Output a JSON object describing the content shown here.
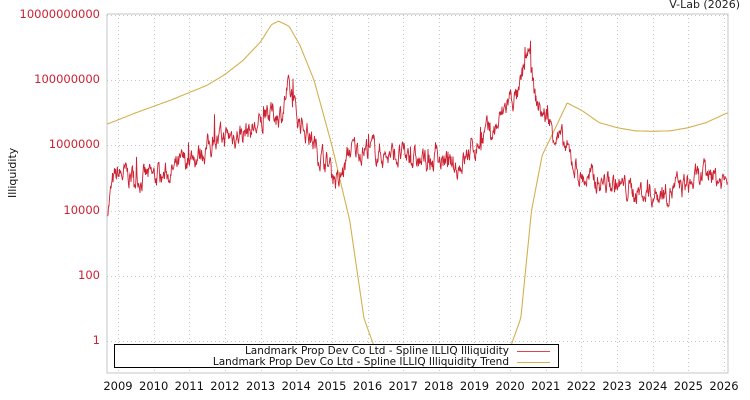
{
  "header": {
    "credit": "V-Lab (2026)"
  },
  "colors": {
    "series": "#cc2233",
    "trend": "#d4b050",
    "grid": "#c8c8c8",
    "axis": "#c0c0c0",
    "ytick": "#cc2233"
  },
  "legend": {
    "items": [
      {
        "label": "Landmark Prop Dev Co Ltd - Spline ILLIQ Illiquidity",
        "color": "#dd4455"
      },
      {
        "label": "Landmark Prop Dev Co Ltd - Spline ILLIQ Illiquidity Trend",
        "color": "#d4b050"
      }
    ]
  },
  "chart_data": {
    "type": "line",
    "title": "",
    "xlabel": "",
    "ylabel": "Illiquidity",
    "yscale": "log",
    "ylim": [
      0.3,
      10000000000
    ],
    "xlim": [
      2008.7,
      2026.1
    ],
    "grid": true,
    "legend_position": "bottom-left inside",
    "yticks": [
      "10000000000",
      "100000000",
      "1000000",
      "10000",
      "100",
      "1"
    ],
    "xticks": [
      "2009",
      "2010",
      "2011",
      "2012",
      "2013",
      "2014",
      "2015",
      "2016",
      "2017",
      "2018",
      "2019",
      "2020",
      "2021",
      "2022",
      "2023",
      "2024",
      "2025",
      "2026"
    ],
    "series": [
      {
        "name": "Landmark Prop Dev Co Ltd - Spline ILLIQ Illiquidity",
        "x": [
          2008.7,
          2008.85,
          2009.0,
          2009.5,
          2010.0,
          2010.5,
          2011.0,
          2011.5,
          2012.0,
          2012.5,
          2013.0,
          2013.3,
          2013.6,
          2013.75,
          2014.0,
          2014.3,
          2014.6,
          2014.9,
          2015.2,
          2015.5,
          2016.0,
          2016.5,
          2017.0,
          2017.5,
          2018.0,
          2018.5,
          2019.0,
          2019.3,
          2019.6,
          2020.0,
          2020.25,
          2020.5,
          2020.7,
          2020.9,
          2021.1,
          2021.4,
          2021.7,
          2022.0,
          2022.5,
          2023.0,
          2023.5,
          2024.0,
          2024.5,
          2025.0,
          2025.5,
          2026.0,
          2026.1
        ],
        "y": [
          12000,
          60000,
          120000,
          110000,
          100000,
          150000,
          350000,
          900000,
          1800000,
          2500000,
          4000000,
          9000000,
          10000000,
          50000000,
          8000000,
          3000000,
          700000,
          250000,
          60000,
          700000,
          800000,
          500000,
          450000,
          300000,
          350000,
          200000,
          900000,
          2000000,
          3000000,
          30000000,
          30000000,
          1000000000,
          25000000,
          10000000,
          5000000,
          1500000,
          400000,
          100000,
          80000,
          60000,
          40000,
          30000,
          45000,
          60000,
          120000,
          80000,
          150000
        ]
      },
      {
        "name": "Landmark Prop Dev Co Ltd - Spline ILLIQ Illiquidity Trend",
        "x": [
          2008.7,
          2009.5,
          2010.5,
          2011.5,
          2012.0,
          2012.5,
          2013.0,
          2013.3,
          2013.5,
          2013.8,
          2014.1,
          2014.5,
          2015.0,
          2015.5,
          2015.9,
          2016.3,
          2019.9,
          2020.3,
          2020.6,
          2020.9,
          2021.3,
          2021.6,
          2022.0,
          2022.5,
          2023.0,
          2023.5,
          2024.0,
          2024.5,
          2025.0,
          2025.5,
          2026.1
        ],
        "y": [
          4500000,
          10000000,
          25000000,
          70000000,
          150000000,
          400000000,
          1500000000,
          5000000000,
          6500000000,
          4500000000,
          1200000000,
          100000000,
          1000000,
          5000,
          5,
          0.3,
          0.3,
          5,
          10000,
          500000,
          4000000,
          20000000,
          12000000,
          5000000,
          3500000,
          2800000,
          2700000,
          2800000,
          3500000,
          5000000,
          10000000
        ]
      }
    ]
  }
}
